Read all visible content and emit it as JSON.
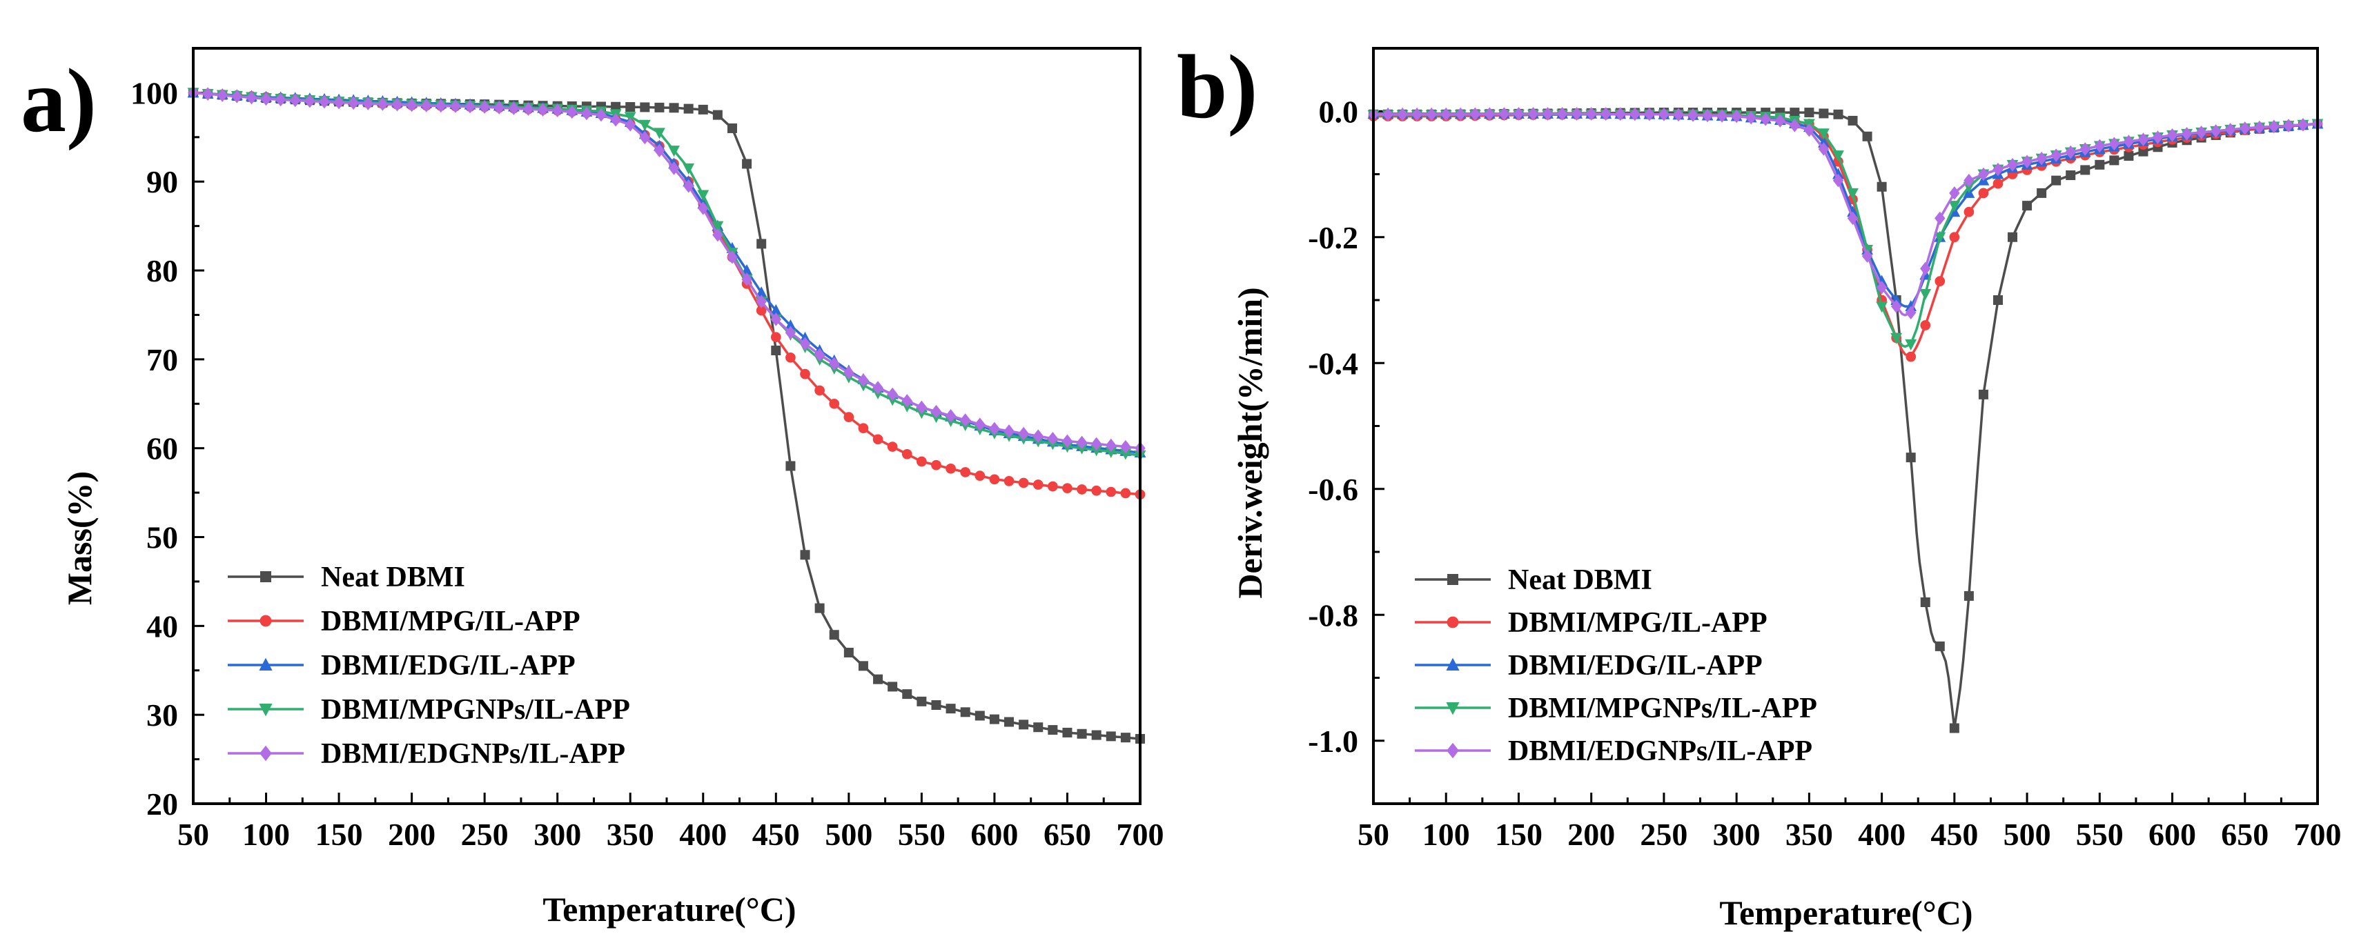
{
  "chart_data": [
    {
      "type": "line",
      "panel_label": "a)",
      "xlabel": "Temperature(°C)",
      "ylabel": "Mass(%)",
      "xlim": [
        50,
        700
      ],
      "ylim": [
        20,
        105
      ],
      "xticks": [
        "50",
        "100",
        "150",
        "200",
        "250",
        "300",
        "350",
        "400",
        "450",
        "500",
        "550",
        "600",
        "650",
        "700"
      ],
      "yticks": [
        "20",
        "30",
        "40",
        "50",
        "60",
        "70",
        "80",
        "90",
        "100"
      ],
      "grid": false,
      "legend_position": "bottom-left",
      "series": [
        {
          "name": "Neat DBMI",
          "color": "#4d4d4d",
          "marker": "square",
          "x": [
            50,
            100,
            150,
            200,
            250,
            300,
            350,
            380,
            400,
            410,
            420,
            430,
            440,
            450,
            460,
            470,
            480,
            490,
            500,
            520,
            550,
            600,
            650,
            700
          ],
          "y": [
            100,
            99.4,
            99,
            98.8,
            98.7,
            98.5,
            98.4,
            98.3,
            98.1,
            97.5,
            96,
            92,
            83,
            71,
            58,
            48,
            42,
            39,
            37,
            34,
            31.5,
            29.5,
            28,
            27.3
          ]
        },
        {
          "name": "DBMI/MPG/IL-APP",
          "color": "#f04040",
          "marker": "circle",
          "x": [
            50,
            100,
            150,
            200,
            250,
            300,
            330,
            350,
            370,
            390,
            400,
            410,
            420,
            430,
            440,
            450,
            460,
            480,
            500,
            520,
            550,
            600,
            650,
            700
          ],
          "y": [
            100,
            99.5,
            99,
            98.6,
            98.4,
            98,
            97.6,
            96.5,
            94,
            90,
            87.5,
            84.5,
            81.5,
            78.5,
            75.5,
            72.5,
            70.2,
            66.5,
            63.5,
            61,
            58.5,
            56.5,
            55.5,
            54.8
          ]
        },
        {
          "name": "DBMI/EDG/IL-APP",
          "color": "#2a6ad8",
          "marker": "triangle-up",
          "x": [
            50,
            100,
            150,
            200,
            250,
            300,
            330,
            350,
            370,
            390,
            400,
            410,
            420,
            430,
            440,
            450,
            460,
            480,
            500,
            520,
            550,
            600,
            650,
            700
          ],
          "y": [
            100,
            99.5,
            99.2,
            98.9,
            98.6,
            98.2,
            97.7,
            96.7,
            94,
            90,
            87.5,
            85,
            82.5,
            80,
            77.5,
            75.5,
            73.8,
            71,
            68.7,
            66.8,
            64.6,
            62,
            60.4,
            59.5
          ]
        },
        {
          "name": "DBMI/MPGNPs/IL-APP",
          "color": "#2fae6e",
          "marker": "triangle-down",
          "x": [
            50,
            100,
            150,
            200,
            250,
            300,
            330,
            350,
            370,
            390,
            400,
            410,
            420,
            430,
            440,
            450,
            460,
            480,
            500,
            520,
            550,
            600,
            650,
            700
          ],
          "y": [
            100,
            99.4,
            99,
            98.7,
            98.5,
            98.2,
            97.9,
            97.3,
            95.5,
            91.5,
            88.5,
            85,
            82,
            79,
            76.5,
            74.5,
            72.8,
            70,
            68,
            66.2,
            64,
            61.7,
            60.2,
            59.2
          ]
        },
        {
          "name": "DBMI/EDGNPs/IL-APP",
          "color": "#b26ce6",
          "marker": "diamond",
          "x": [
            50,
            100,
            150,
            200,
            250,
            300,
            330,
            350,
            370,
            390,
            400,
            410,
            420,
            430,
            440,
            450,
            460,
            480,
            500,
            520,
            550,
            600,
            650,
            700
          ],
          "y": [
            100,
            99.3,
            98.9,
            98.6,
            98.4,
            98,
            97.5,
            96.4,
            93.5,
            89.5,
            87,
            84,
            81.5,
            79,
            76.5,
            74.5,
            73,
            70.5,
            68.5,
            66.8,
            64.6,
            62.2,
            60.8,
            60
          ]
        }
      ]
    },
    {
      "type": "line",
      "panel_label": "b)",
      "xlabel": "Temperature(°C)",
      "ylabel": "Deriv.weight(%/min)",
      "xlim": [
        50,
        700
      ],
      "ylim": [
        -1.1,
        0.1
      ],
      "xticks": [
        "50",
        "100",
        "150",
        "200",
        "250",
        "300",
        "350",
        "400",
        "450",
        "500",
        "550",
        "600",
        "650",
        "700"
      ],
      "yticks": [
        "0.0",
        "-0.2",
        "-0.4",
        "-0.6",
        "-0.8",
        "-1.0"
      ],
      "grid": false,
      "legend_position": "bottom-left",
      "series": [
        {
          "name": "Neat DBMI",
          "color": "#4d4d4d",
          "marker": "square",
          "x": [
            50,
            100,
            150,
            200,
            250,
            300,
            350,
            370,
            380,
            390,
            400,
            410,
            420,
            425,
            430,
            435,
            440,
            445,
            450,
            455,
            460,
            465,
            470,
            480,
            490,
            500,
            520,
            550,
            600,
            650,
            700
          ],
          "y": [
            -0.005,
            -0.005,
            -0.004,
            -0.003,
            -0.002,
            -0.002,
            -0.002,
            -0.005,
            -0.015,
            -0.04,
            -0.12,
            -0.3,
            -0.55,
            -0.7,
            -0.78,
            -0.84,
            -0.85,
            -0.88,
            -0.98,
            -0.9,
            -0.77,
            -0.6,
            -0.45,
            -0.3,
            -0.2,
            -0.15,
            -0.11,
            -0.085,
            -0.05,
            -0.03,
            -0.02
          ]
        },
        {
          "name": "DBMI/MPG/IL-APP",
          "color": "#f04040",
          "marker": "circle",
          "x": [
            50,
            100,
            150,
            200,
            250,
            300,
            330,
            350,
            360,
            370,
            380,
            390,
            400,
            410,
            415,
            420,
            425,
            430,
            440,
            450,
            460,
            470,
            490,
            520,
            550,
            600,
            650,
            700
          ],
          "y": [
            -0.008,
            -0.008,
            -0.006,
            -0.005,
            -0.005,
            -0.007,
            -0.012,
            -0.02,
            -0.04,
            -0.08,
            -0.14,
            -0.22,
            -0.3,
            -0.36,
            -0.385,
            -0.39,
            -0.37,
            -0.34,
            -0.27,
            -0.2,
            -0.16,
            -0.13,
            -0.1,
            -0.08,
            -0.065,
            -0.045,
            -0.03,
            -0.02
          ]
        },
        {
          "name": "DBMI/EDG/IL-APP",
          "color": "#2a6ad8",
          "marker": "triangle-up",
          "x": [
            50,
            100,
            150,
            200,
            250,
            300,
            330,
            350,
            360,
            370,
            380,
            390,
            400,
            410,
            415,
            420,
            425,
            430,
            440,
            450,
            460,
            470,
            490,
            520,
            550,
            600,
            650,
            700
          ],
          "y": [
            -0.004,
            -0.004,
            -0.004,
            -0.004,
            -0.005,
            -0.008,
            -0.014,
            -0.025,
            -0.05,
            -0.1,
            -0.16,
            -0.22,
            -0.27,
            -0.3,
            -0.31,
            -0.31,
            -0.29,
            -0.26,
            -0.2,
            -0.16,
            -0.13,
            -0.11,
            -0.09,
            -0.075,
            -0.06,
            -0.04,
            -0.028,
            -0.02
          ]
        },
        {
          "name": "DBMI/MPGNPs/IL-APP",
          "color": "#2fae6e",
          "marker": "triangle-down",
          "x": [
            50,
            100,
            150,
            200,
            250,
            300,
            330,
            350,
            360,
            370,
            380,
            390,
            400,
            410,
            415,
            420,
            425,
            430,
            440,
            450,
            460,
            470,
            490,
            520,
            550,
            600,
            650,
            700
          ],
          "y": [
            -0.006,
            -0.006,
            -0.005,
            -0.005,
            -0.005,
            -0.006,
            -0.01,
            -0.02,
            -0.035,
            -0.07,
            -0.13,
            -0.22,
            -0.31,
            -0.36,
            -0.375,
            -0.37,
            -0.34,
            -0.29,
            -0.2,
            -0.15,
            -0.12,
            -0.1,
            -0.085,
            -0.07,
            -0.055,
            -0.038,
            -0.027,
            -0.02
          ]
        },
        {
          "name": "DBMI/EDGNPs/IL-APP",
          "color": "#b26ce6",
          "marker": "diamond",
          "x": [
            50,
            100,
            150,
            200,
            250,
            300,
            330,
            350,
            360,
            370,
            380,
            390,
            400,
            410,
            415,
            420,
            425,
            430,
            440,
            450,
            460,
            470,
            490,
            520,
            550,
            600,
            650,
            700
          ],
          "y": [
            -0.005,
            -0.005,
            -0.004,
            -0.004,
            -0.005,
            -0.008,
            -0.015,
            -0.03,
            -0.06,
            -0.11,
            -0.17,
            -0.23,
            -0.28,
            -0.31,
            -0.325,
            -0.32,
            -0.29,
            -0.25,
            -0.17,
            -0.13,
            -0.11,
            -0.1,
            -0.085,
            -0.07,
            -0.055,
            -0.038,
            -0.027,
            -0.02
          ]
        }
      ]
    }
  ]
}
